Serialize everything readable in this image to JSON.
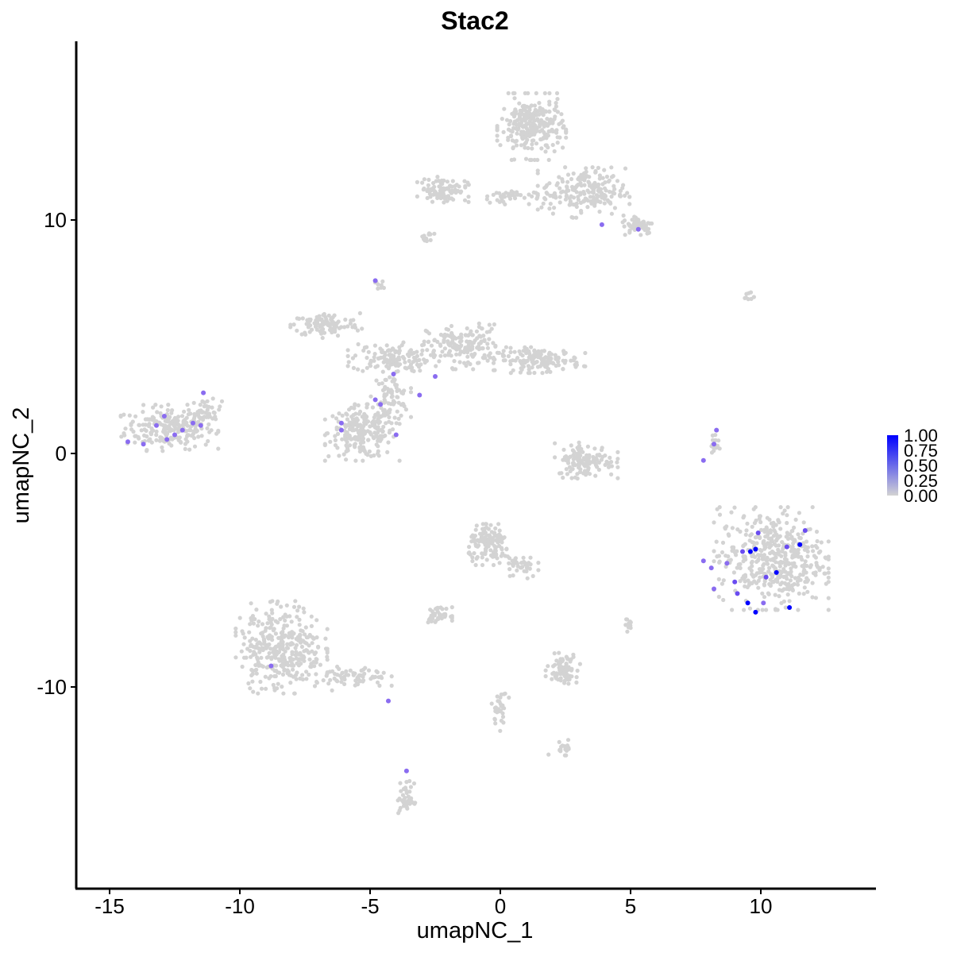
{
  "chart_data": {
    "type": "scatter",
    "title": "Stac2",
    "xlabel": "umapNC_1",
    "ylabel": "umapNC_2",
    "xlim": [
      -16.5,
      14.2
    ],
    "ylim": [
      -18.5,
      17.5
    ],
    "xticks": [
      -15,
      -10,
      -5,
      0,
      5,
      10
    ],
    "xtick_labels": [
      "-15",
      "-10",
      "-5",
      "0",
      "5",
      "10"
    ],
    "yticks": [
      -10,
      0,
      10
    ],
    "ytick_labels": [
      "-10",
      "0",
      "10"
    ],
    "grid": false,
    "legend": {
      "placement": "right",
      "labels": [
        "1.00",
        "0.75",
        "0.50",
        "0.25",
        "0.00"
      ],
      "values": [
        1.0,
        0.75,
        0.5,
        0.25,
        0.0
      ],
      "color_low": "#d3d3d3",
      "color_high": "#0000ff"
    },
    "background_color": "#d3d3d3",
    "clusters": [
      {
        "name": "c1",
        "cx": -12.7,
        "cy": 1.1,
        "rx": 1.7,
        "ry": 0.9,
        "n": 230
      },
      {
        "name": "c1b",
        "cx": -11.3,
        "cy": 1.8,
        "rx": 0.6,
        "ry": 0.5,
        "n": 40
      },
      {
        "name": "c2",
        "cx": -5.3,
        "cy": 0.9,
        "rx": 1.3,
        "ry": 1.1,
        "n": 220
      },
      {
        "name": "c2b",
        "cx": -4.2,
        "cy": 2.4,
        "rx": 0.7,
        "ry": 1.0,
        "n": 80
      },
      {
        "name": "c3",
        "cx": -6.7,
        "cy": 5.5,
        "rx": 1.3,
        "ry": 0.5,
        "n": 110
      },
      {
        "name": "c3b",
        "cx": -4.2,
        "cy": 4.1,
        "rx": 1.5,
        "ry": 0.6,
        "n": 130
      },
      {
        "name": "c3c",
        "cx": -1.4,
        "cy": 4.6,
        "rx": 1.4,
        "ry": 0.9,
        "n": 160
      },
      {
        "name": "c3d",
        "cx": 1.5,
        "cy": 4.0,
        "rx": 1.6,
        "ry": 0.5,
        "n": 150
      },
      {
        "name": "c4",
        "cx": 1.2,
        "cy": 14.0,
        "rx": 1.2,
        "ry": 1.3,
        "n": 260
      },
      {
        "name": "c4b",
        "cx": -2.2,
        "cy": 11.3,
        "rx": 0.9,
        "ry": 0.5,
        "n": 90
      },
      {
        "name": "c4c",
        "cx": 0.1,
        "cy": 11.0,
        "rx": 1.2,
        "ry": 0.3,
        "n": 40
      },
      {
        "name": "c4d",
        "cx": 3.2,
        "cy": 11.2,
        "rx": 1.6,
        "ry": 1.0,
        "n": 200
      },
      {
        "name": "c4e",
        "cx": 5.3,
        "cy": 9.8,
        "rx": 0.6,
        "ry": 0.4,
        "n": 60
      },
      {
        "name": "c5",
        "cx": 3.3,
        "cy": -0.3,
        "rx": 1.1,
        "ry": 0.7,
        "n": 130
      },
      {
        "name": "c6",
        "cx": 10.4,
        "cy": -4.5,
        "rx": 2.0,
        "ry": 2.0,
        "n": 460
      },
      {
        "name": "c7",
        "cx": -8.4,
        "cy": -8.3,
        "rx": 1.6,
        "ry": 1.8,
        "n": 350
      },
      {
        "name": "c7b",
        "cx": -5.6,
        "cy": -9.6,
        "rx": 1.3,
        "ry": 0.5,
        "n": 70
      },
      {
        "name": "c8",
        "cx": -0.4,
        "cy": -3.9,
        "rx": 0.8,
        "ry": 0.8,
        "n": 130
      },
      {
        "name": "c8b",
        "cx": 0.8,
        "cy": -4.8,
        "rx": 0.6,
        "ry": 0.6,
        "n": 40
      },
      {
        "name": "c9",
        "cx": 2.4,
        "cy": -9.2,
        "rx": 0.6,
        "ry": 0.6,
        "n": 80
      },
      {
        "name": "c10",
        "cx": -2.4,
        "cy": -6.9,
        "rx": 0.5,
        "ry": 0.3,
        "n": 40
      },
      {
        "name": "c11",
        "cx": -3.6,
        "cy": -14.8,
        "rx": 0.3,
        "ry": 0.7,
        "n": 40
      },
      {
        "name": "c12",
        "cx": 0.0,
        "cy": -11.0,
        "rx": 0.3,
        "ry": 0.8,
        "n": 30
      },
      {
        "name": "c13",
        "cx": 2.4,
        "cy": -12.6,
        "rx": 0.5,
        "ry": 0.3,
        "n": 20
      },
      {
        "name": "c14",
        "cx": 8.2,
        "cy": 0.4,
        "rx": 0.2,
        "ry": 0.5,
        "n": 15
      },
      {
        "name": "c15",
        "cx": 4.9,
        "cy": -7.3,
        "rx": 0.2,
        "ry": 0.3,
        "n": 10
      },
      {
        "name": "c16",
        "cx": -2.8,
        "cy": 9.2,
        "rx": 0.3,
        "ry": 0.3,
        "n": 12
      },
      {
        "name": "c17",
        "cx": -4.6,
        "cy": 7.2,
        "rx": 0.2,
        "ry": 0.3,
        "n": 8
      },
      {
        "name": "c18",
        "cx": 9.5,
        "cy": 6.7,
        "rx": 0.3,
        "ry": 0.2,
        "n": 8
      }
    ],
    "expressing_points": [
      {
        "x": -14.3,
        "y": 0.5,
        "v": 0.6
      },
      {
        "x": -13.2,
        "y": 1.2,
        "v": 0.6
      },
      {
        "x": -12.9,
        "y": 1.6,
        "v": 0.6
      },
      {
        "x": -12.5,
        "y": 0.8,
        "v": 0.6
      },
      {
        "x": -12.2,
        "y": 1.0,
        "v": 0.6
      },
      {
        "x": -11.8,
        "y": 1.3,
        "v": 0.6
      },
      {
        "x": -11.5,
        "y": 1.2,
        "v": 0.6
      },
      {
        "x": -11.4,
        "y": 2.6,
        "v": 0.6
      },
      {
        "x": -12.8,
        "y": 0.6,
        "v": 0.6
      },
      {
        "x": -13.7,
        "y": 0.4,
        "v": 0.6
      },
      {
        "x": -6.1,
        "y": 1.3,
        "v": 0.6
      },
      {
        "x": -6.1,
        "y": 1.0,
        "v": 0.6
      },
      {
        "x": -4.8,
        "y": 2.3,
        "v": 0.6
      },
      {
        "x": -4.6,
        "y": 2.1,
        "v": 0.6
      },
      {
        "x": -4.1,
        "y": 3.4,
        "v": 0.6
      },
      {
        "x": -4.0,
        "y": 0.8,
        "v": 0.6
      },
      {
        "x": -3.1,
        "y": 2.5,
        "v": 0.6
      },
      {
        "x": -2.5,
        "y": 3.3,
        "v": 0.6
      },
      {
        "x": -4.8,
        "y": 7.4,
        "v": 0.6
      },
      {
        "x": 3.9,
        "y": 9.8,
        "v": 0.6
      },
      {
        "x": 5.3,
        "y": 9.6,
        "v": 0.6
      },
      {
        "x": 7.8,
        "y": -0.3,
        "v": 0.6
      },
      {
        "x": 8.2,
        "y": 0.4,
        "v": 0.6
      },
      {
        "x": 8.3,
        "y": 1.0,
        "v": 0.6
      },
      {
        "x": 7.8,
        "y": -4.6,
        "v": 0.6
      },
      {
        "x": 8.1,
        "y": -4.9,
        "v": 0.6
      },
      {
        "x": 8.2,
        "y": -5.8,
        "v": 0.6
      },
      {
        "x": 8.7,
        "y": -4.7,
        "v": 0.6
      },
      {
        "x": 9.0,
        "y": -5.5,
        "v": 0.7
      },
      {
        "x": 9.3,
        "y": -4.2,
        "v": 0.8
      },
      {
        "x": 9.6,
        "y": -4.2,
        "v": 1.0
      },
      {
        "x": 9.8,
        "y": -4.1,
        "v": 1.0
      },
      {
        "x": 9.9,
        "y": -3.4,
        "v": 0.7
      },
      {
        "x": 10.2,
        "y": -5.3,
        "v": 0.7
      },
      {
        "x": 10.6,
        "y": -5.1,
        "v": 1.0
      },
      {
        "x": 9.5,
        "y": -6.4,
        "v": 1.0
      },
      {
        "x": 9.8,
        "y": -6.8,
        "v": 1.0
      },
      {
        "x": 9.1,
        "y": -6.0,
        "v": 0.7
      },
      {
        "x": 10.1,
        "y": -6.4,
        "v": 0.6
      },
      {
        "x": 11.1,
        "y": -6.6,
        "v": 1.0
      },
      {
        "x": 11.0,
        "y": -4.0,
        "v": 0.7
      },
      {
        "x": 11.5,
        "y": -3.9,
        "v": 1.0
      },
      {
        "x": 11.7,
        "y": -3.3,
        "v": 0.7
      },
      {
        "x": -8.8,
        "y": -9.1,
        "v": 0.6
      },
      {
        "x": -4.3,
        "y": -10.6,
        "v": 0.6
      },
      {
        "x": -3.6,
        "y": -13.6,
        "v": 0.6
      }
    ]
  }
}
